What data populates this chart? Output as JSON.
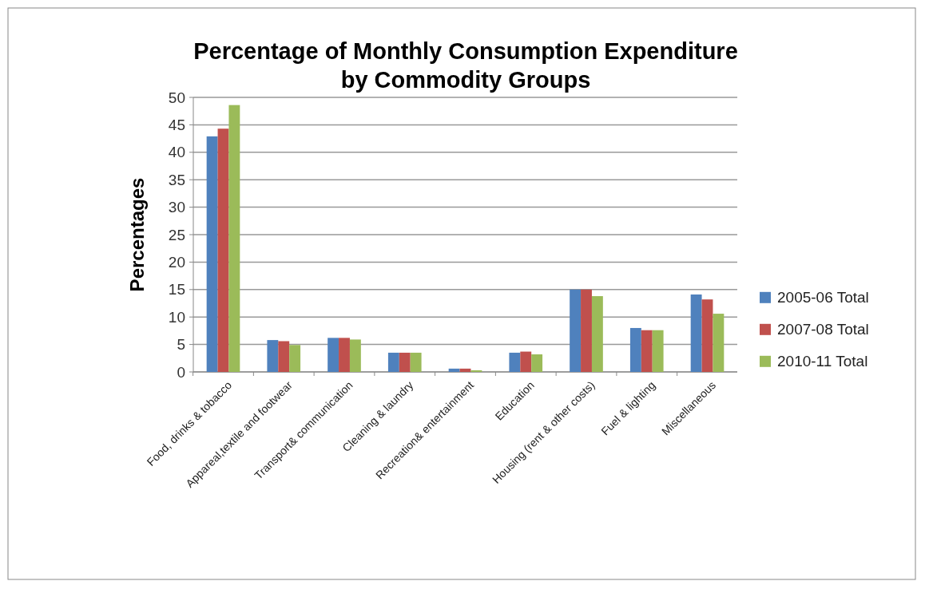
{
  "chart_data": {
    "type": "bar",
    "title": "Percentage of Monthly Consumption Expenditure by  Commodity Groups",
    "ylabel": "Percentages",
    "categories": [
      "Food, drinks & tobacco",
      "Appareal,textile and footwear",
      "Transport& communication",
      "Cleaning & laundry",
      "Recreation& entertainment",
      "Education",
      "Housing (rent & other costs)",
      "Fuel & lighting",
      "Miscellaneous"
    ],
    "series": [
      {
        "name": "2005-06 Total",
        "color": "#4f81bd",
        "values": [
          42.9,
          5.8,
          6.2,
          3.5,
          0.6,
          3.5,
          15,
          8,
          14.1
        ]
      },
      {
        "name": "2007-08 Total",
        "color": "#c0504d",
        "values": [
          44.3,
          5.6,
          6.2,
          3.5,
          0.6,
          3.7,
          15,
          7.6,
          13.2
        ]
      },
      {
        "name": "2010-11 Total",
        "color": "#9bbb59",
        "values": [
          48.6,
          4.9,
          5.9,
          3.5,
          0.3,
          3.2,
          13.8,
          7.6,
          10.6
        ]
      }
    ],
    "ylim": [
      0,
      50
    ],
    "yticks": [
      0,
      5,
      10,
      15,
      20,
      25,
      30,
      35,
      40,
      45,
      50
    ],
    "grid": "y",
    "legend": "right"
  }
}
